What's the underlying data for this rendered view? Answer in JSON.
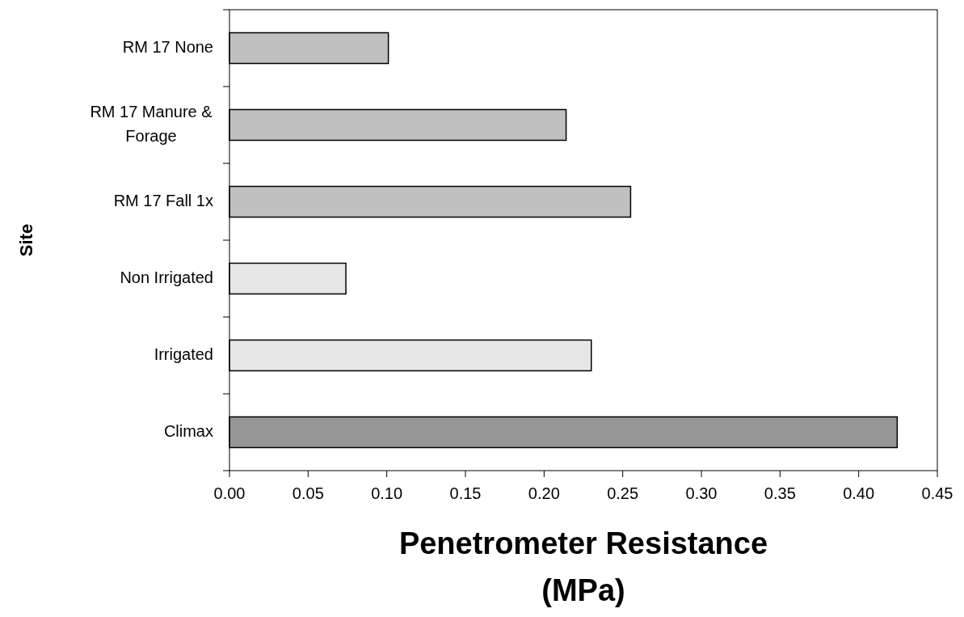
{
  "chart_data": {
    "type": "bar",
    "orientation": "horizontal",
    "categories": [
      "RM 17 None",
      "RM 17 Manure & Forage",
      "RM 17 Fall 1x",
      "Non Irrigated",
      "Irrigated",
      "Climax"
    ],
    "values": [
      0.101,
      0.214,
      0.255,
      0.074,
      0.23,
      0.4245
    ],
    "colors": [
      "#c0c0c0",
      "#c0c0c0",
      "#c0c0c0",
      "#e6e6e6",
      "#e6e6e6",
      "#969696"
    ],
    "xlim": [
      0,
      0.45
    ],
    "xticks": [
      {
        "value": 0,
        "label": "0.00"
      },
      {
        "value": 0.05,
        "label": "0.05"
      },
      {
        "value": 0.1,
        "label": "0.10"
      },
      {
        "value": 0.15,
        "label": "0.15"
      },
      {
        "value": 0.2,
        "label": "0.20"
      },
      {
        "value": 0.25,
        "label": "0.25"
      },
      {
        "value": 0.3,
        "label": "0.30"
      },
      {
        "value": 0.35,
        "label": "0.35"
      },
      {
        "value": 0.4,
        "label": "0.40"
      },
      {
        "value": 0.45,
        "label": "0.45"
      }
    ],
    "xlabel": "Penetrometer Resistance (MPa)",
    "ylabel": "Site",
    "grid": false
  }
}
